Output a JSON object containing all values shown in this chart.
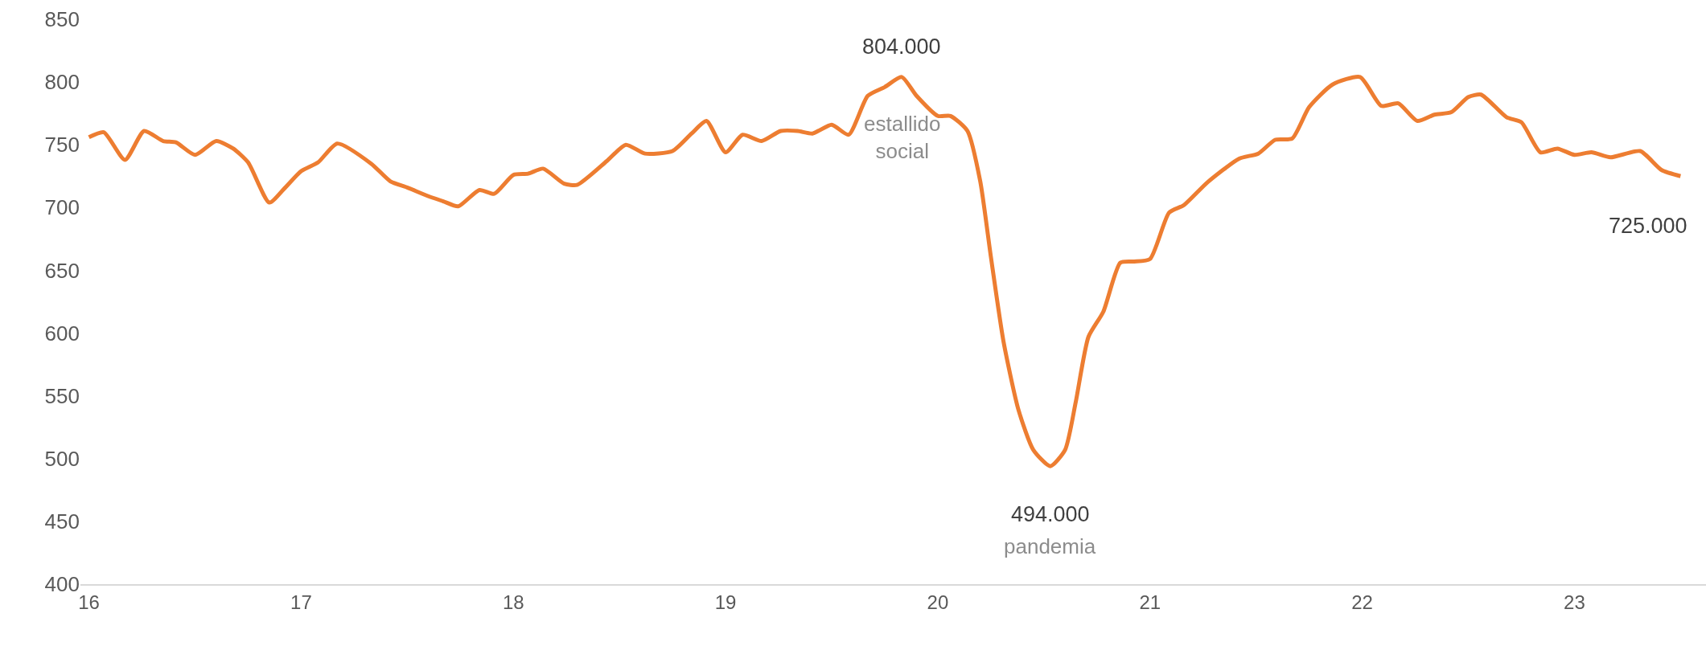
{
  "chart_data": {
    "type": "line",
    "x": [
      16.0,
      16.07,
      16.17,
      16.26,
      16.35,
      16.41,
      16.5,
      16.6,
      16.68,
      16.75,
      16.85,
      16.92,
      17.0,
      17.08,
      17.17,
      17.33,
      17.42,
      17.5,
      17.6,
      17.67,
      17.74,
      17.84,
      17.91,
      18.0,
      18.07,
      18.14,
      18.24,
      18.3,
      18.44,
      18.53,
      18.62,
      18.75,
      18.84,
      18.91,
      19.0,
      19.08,
      19.17,
      19.26,
      19.34,
      19.41,
      19.5,
      19.58,
      19.67,
      19.75,
      19.83,
      19.9,
      20.0,
      20.06,
      20.14,
      20.2,
      20.25,
      20.31,
      20.38,
      20.45,
      20.53,
      20.6,
      20.65,
      20.71,
      20.78,
      20.86,
      20.92,
      21.0,
      21.09,
      21.16,
      21.27,
      21.42,
      21.51,
      21.59,
      21.67,
      21.75,
      21.86,
      21.99,
      22.09,
      22.17,
      22.26,
      22.34,
      22.42,
      22.5,
      22.56,
      22.68,
      22.75,
      22.84,
      22.92,
      23.0,
      23.08,
      23.17,
      23.31,
      23.41,
      23.5
    ],
    "series": [
      {
        "color": "#ed7d31",
        "values": [
          756,
          760,
          738,
          761,
          753,
          752,
          742,
          753,
          747,
          736,
          704,
          715,
          729,
          736,
          751,
          735,
          721,
          716,
          709,
          705,
          701,
          714,
          711,
          726,
          727,
          731,
          719,
          718,
          737,
          750,
          743,
          745,
          759,
          769,
          744,
          758,
          753,
          761,
          761,
          759,
          766,
          758,
          789,
          796,
          804,
          789,
          773,
          773,
          761,
          721,
          661,
          593,
          539,
          507,
          494,
          507,
          545,
          597,
          617,
          656,
          657,
          659,
          696,
          702,
          720,
          739,
          743,
          754,
          755,
          780,
          798,
          804,
          781,
          783,
          769,
          774,
          776,
          788,
          790,
          772,
          768,
          744,
          747,
          742,
          744,
          740,
          745,
          730,
          725
        ]
      }
    ],
    "xlim": [
      15.96,
      23.62
    ],
    "xticks": [
      16,
      17,
      18,
      19,
      20,
      21,
      22,
      23
    ],
    "ylim": [
      400,
      850
    ],
    "yticks": [
      400,
      450,
      500,
      550,
      600,
      650,
      700,
      750,
      800,
      850
    ],
    "annotations": [
      {
        "text": "804.000",
        "x": 19.83,
        "y": 804
      },
      "estallido\nsocial",
      {
        "text": "494.000",
        "x": 20.53,
        "y": 494
      },
      "pandemia",
      {
        "text": "725.000",
        "x": 23.5,
        "y": 725
      }
    ]
  }
}
